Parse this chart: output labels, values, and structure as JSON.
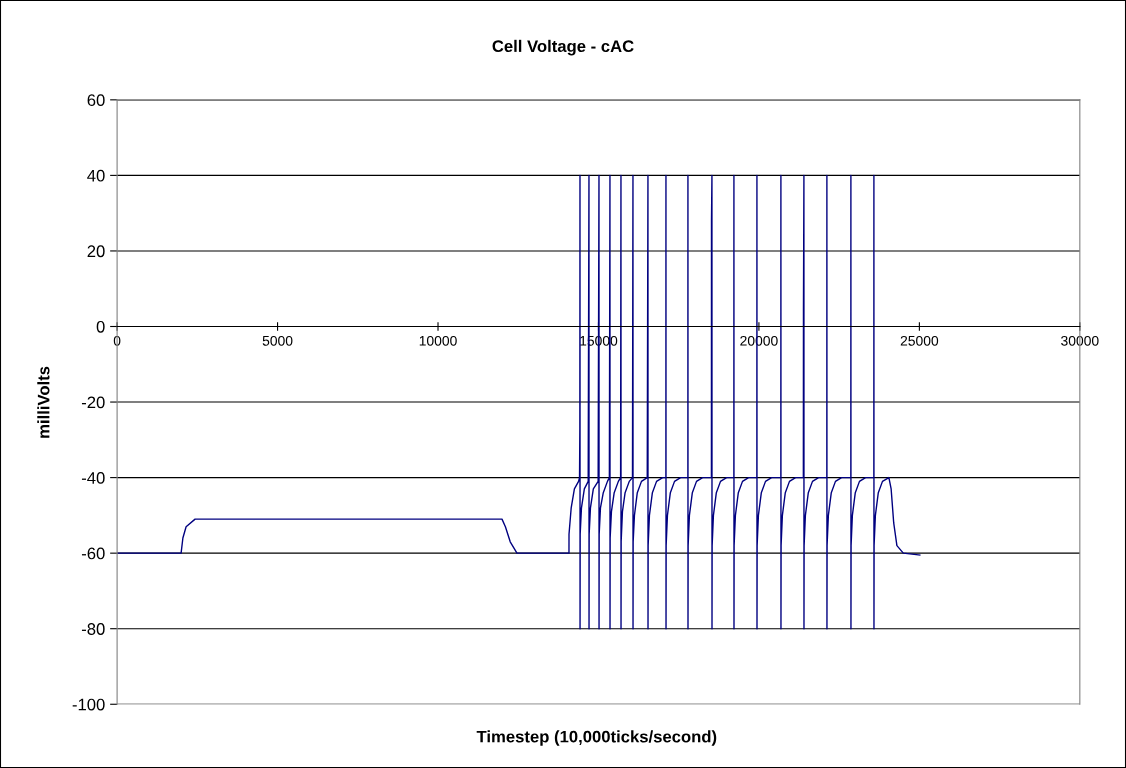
{
  "chart_data": {
    "type": "line",
    "title": "Cell Voltage - cAC",
    "xlabel": "Timestep (10,000ticks/second)",
    "ylabel": "milliVolts",
    "xlim": [
      0,
      30000
    ],
    "xticks": [
      0,
      5000,
      10000,
      15000,
      20000,
      25000,
      30000
    ],
    "ylim": [
      -100,
      60
    ],
    "yticks": [
      -100,
      -80,
      -60,
      -40,
      -20,
      0,
      20,
      40,
      60
    ],
    "grid": "y",
    "legend": false,
    "marker": "none",
    "line_style": "solid",
    "series": [
      {
        "color": "#000080",
        "x": [
          0,
          1994,
          2050,
          2150,
          2430,
          11994,
          12100,
          12250,
          12460,
          14081,
          14082,
          14150,
          14250,
          14380,
          14410,
          14420,
          14424,
          14426,
          14430,
          14470,
          14560,
          14680,
          14704,
          14706,
          14710,
          14750,
          14840,
          14990,
          15016,
          15018,
          15022,
          15062,
          15150,
          15280,
          15340,
          15358,
          15360,
          15364,
          15404,
          15490,
          15620,
          15690,
          15701,
          15703,
          15707,
          15747,
          15830,
          15960,
          16060,
          16075,
          16077,
          16081,
          16121,
          16210,
          16340,
          16520,
          16542,
          16544,
          16548,
          16588,
          16680,
          16810,
          17000,
          17101,
          17103,
          17105,
          17109,
          17149,
          17240,
          17370,
          17560,
          17786,
          17788,
          17790,
          17794,
          17834,
          17925,
          18055,
          18245,
          18520,
          18522,
          18536,
          18538,
          18542,
          18582,
          18673,
          18803,
          18993,
          19219,
          19221,
          19223,
          19227,
          19267,
          19358,
          19488,
          19678,
          19936,
          19938,
          19940,
          19944,
          19984,
          20075,
          20205,
          20395,
          20683,
          20685,
          20687,
          20691,
          20731,
          20822,
          20952,
          21142,
          21385,
          21388,
          21402,
          21404,
          21408,
          21448,
          21539,
          21669,
          21859,
          22116,
          22118,
          22120,
          22124,
          22164,
          22255,
          22385,
          22575,
          22864,
          22866,
          22868,
          22872,
          22912,
          23003,
          23133,
          23323,
          23581,
          23583,
          23585,
          23589,
          23629,
          23720,
          23850,
          24050,
          24120,
          24200,
          24300,
          24500,
          25015
        ],
        "values": [
          -60,
          -60,
          -56,
          -53,
          -51,
          -51,
          -53,
          -57,
          -60,
          -60,
          -55,
          -48,
          -43,
          -41,
          -40,
          -27,
          40,
          -80,
          -55,
          -48,
          -43,
          -41,
          40,
          -80,
          -55,
          -48,
          -43,
          -41,
          40,
          -80,
          -55,
          -48,
          -44,
          -41,
          -40,
          40,
          -80,
          -56,
          -49,
          -44,
          -41,
          -40,
          40,
          -80,
          -57,
          -49,
          -44,
          -41,
          -40,
          40,
          -80,
          -57,
          -50,
          -44,
          -41,
          -40,
          40,
          -80,
          -58,
          -50,
          -44,
          -41,
          -40,
          -40,
          40,
          -80,
          -58,
          -50,
          -44,
          -41,
          -40,
          -40,
          40,
          -80,
          -58,
          -50,
          -44,
          -41,
          -40,
          -40,
          28,
          40,
          -80,
          -58,
          -50,
          -44,
          -41,
          -40,
          -40,
          40,
          -80,
          -58,
          -50,
          -44,
          -41,
          -40,
          -40,
          40,
          -80,
          -58,
          -50,
          -44,
          -41,
          -40,
          -40,
          40,
          -80,
          -58,
          -50,
          -44,
          -41,
          -40,
          -40,
          4,
          40,
          -80,
          -58,
          -50,
          -44,
          -41,
          -40,
          -40,
          40,
          -80,
          -58,
          -50,
          -44,
          -41,
          -40,
          -40,
          40,
          -80,
          -58,
          -50,
          -44,
          -41,
          -40,
          -40,
          40,
          -80,
          -58,
          -50,
          -44,
          -41,
          -40,
          -43,
          -52,
          -58,
          -60,
          -60.5
        ]
      }
    ]
  }
}
